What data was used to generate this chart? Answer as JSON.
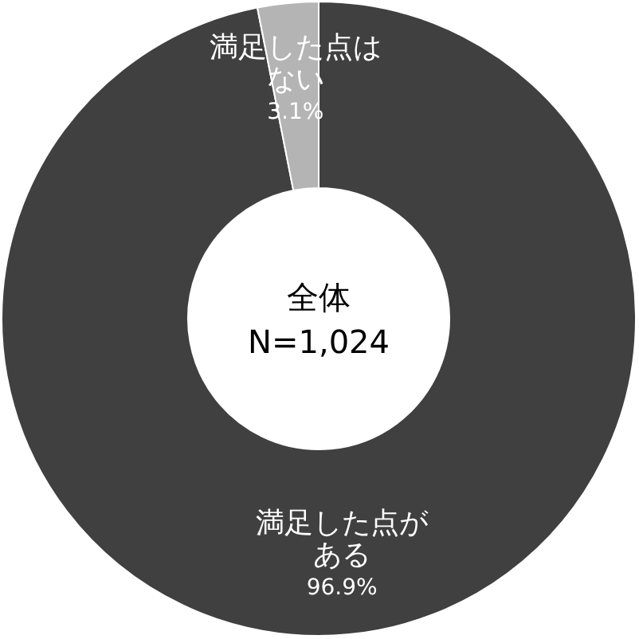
{
  "chart_data": {
    "type": "donut",
    "title": "全体",
    "subtitle": "N=1,024",
    "categories": [
      "満足した点がある",
      "満足した点はない"
    ],
    "values": [
      96.9,
      3.1
    ],
    "colors": [
      "#404040",
      "#b4b4b4"
    ],
    "value_labels": [
      "96.9%",
      "3.1%"
    ]
  }
}
